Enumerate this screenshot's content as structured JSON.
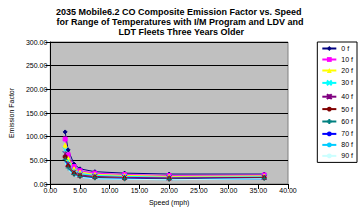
{
  "chart_data": {
    "type": "line",
    "title": "2035 Mobile6.2 CO Composite Emission Factor vs. Speed for Range of Temperatures with I/M Program and LDV and LDT Fleets Three Years Older",
    "x_label": "Speed (mph)",
    "y_label": "Emission Factor",
    "xlim": [
      0,
      40
    ],
    "xticks": [
      {
        "value": 0,
        "label": "0.00"
      },
      {
        "value": 5,
        "label": "5.00"
      },
      {
        "value": 10,
        "label": "10.00"
      },
      {
        "value": 15,
        "label": "15.00"
      },
      {
        "value": 20,
        "label": "20.00"
      },
      {
        "value": 25,
        "label": "25.00"
      },
      {
        "value": 30,
        "label": "30.00"
      },
      {
        "value": 35,
        "label": "35.00"
      },
      {
        "value": 40,
        "label": "40.00"
      }
    ],
    "ylim": [
      0,
      300
    ],
    "yticks": [
      {
        "value": 0,
        "label": "0.00"
      },
      {
        "value": 50,
        "label": "50.00"
      },
      {
        "value": 100,
        "label": "100.00"
      },
      {
        "value": 150,
        "label": "150.00"
      },
      {
        "value": 200,
        "label": "200.00"
      },
      {
        "value": 250,
        "label": "250.00"
      },
      {
        "value": 300,
        "label": "300.00"
      }
    ],
    "grid": true,
    "legend": "right",
    "x": [
      2.5,
      3,
      4,
      5,
      7.5,
      12.5,
      20,
      36
    ],
    "series": [
      {
        "name": "0 f",
        "color": "#000080",
        "marker": "diamond",
        "values": [
          110,
          72,
          42,
          32,
          26,
          23,
          21,
          21
        ]
      },
      {
        "name": "10 f",
        "color": "#ff00ff",
        "marker": "square",
        "values": [
          95,
          62,
          37,
          28,
          23,
          20,
          18,
          19
        ]
      },
      {
        "name": "20 f",
        "color": "#ffff00",
        "marker": "triangle",
        "values": [
          82,
          54,
          32,
          25,
          20,
          18,
          16,
          17
        ]
      },
      {
        "name": "30 f",
        "color": "#00ffff",
        "marker": "x",
        "values": [
          72,
          48,
          28,
          22,
          18,
          16,
          14,
          15
        ]
      },
      {
        "name": "40 f",
        "color": "#800080",
        "marker": "star",
        "values": [
          64,
          42,
          25,
          19,
          16,
          14,
          13,
          14
        ]
      },
      {
        "name": "50 f",
        "color": "#800000",
        "marker": "circle",
        "values": [
          57,
          38,
          22,
          17,
          14,
          12,
          11,
          13
        ]
      },
      {
        "name": "60 f",
        "color": "#008080",
        "marker": "plus",
        "values": [
          52,
          34,
          20,
          16,
          13,
          11,
          10,
          12
        ]
      },
      {
        "name": "70 f",
        "color": "#0000ff",
        "marker": "line",
        "values": [
          48,
          32,
          19,
          15,
          12,
          11,
          10,
          11
        ]
      },
      {
        "name": "80 f",
        "color": "#00ccff",
        "marker": "line",
        "values": [
          46,
          31,
          18,
          14,
          11,
          10,
          9,
          11
        ]
      },
      {
        "name": "90 f",
        "color": "#ccffff",
        "marker": "line",
        "values": [
          45,
          30,
          18,
          14,
          11,
          10,
          9,
          11
        ]
      }
    ]
  }
}
